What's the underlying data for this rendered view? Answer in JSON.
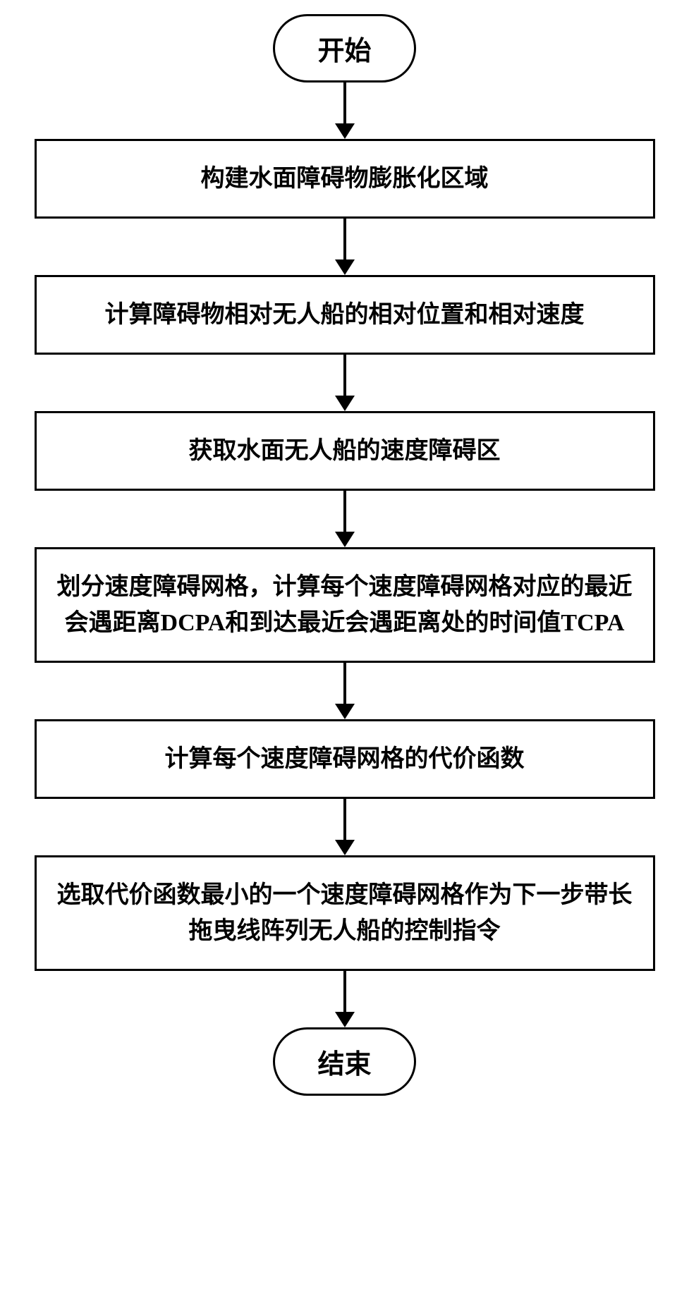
{
  "flowchart": {
    "type": "flowchart",
    "direction": "top-down",
    "background_color": "#ffffff",
    "border_color": "#000000",
    "border_width": 3,
    "text_color": "#000000",
    "font_family": "SimSun",
    "terminator_fontsize": 38,
    "process_fontsize": 34,
    "font_weight": "bold",
    "terminator_border_radius": 50,
    "arrow_color": "#000000",
    "arrow_line_width": 4,
    "arrow_head_width": 28,
    "arrow_head_height": 22,
    "nodes": [
      {
        "id": "start",
        "type": "terminator",
        "label": "开始"
      },
      {
        "id": "step1",
        "type": "process",
        "label": "构建水面障碍物膨胀化区域"
      },
      {
        "id": "step2",
        "type": "process",
        "label": "计算障碍物相对无人船的相对位置和相对速度"
      },
      {
        "id": "step3",
        "type": "process",
        "label": "获取水面无人船的速度障碍区"
      },
      {
        "id": "step4",
        "type": "process",
        "label": "划分速度障碍网格，计算每个速度障碍网格对应的最近会遇距离DCPA和到达最近会遇距离处的时间值TCPA"
      },
      {
        "id": "step5",
        "type": "process",
        "label": "计算每个速度障碍网格的代价函数"
      },
      {
        "id": "step6",
        "type": "process",
        "label": "选取代价函数最小的一个速度障碍网格作为下一步带长拖曳线阵列无人船的控制指令"
      },
      {
        "id": "end",
        "type": "terminator",
        "label": "结束"
      }
    ],
    "edges": [
      {
        "from": "start",
        "to": "step1"
      },
      {
        "from": "step1",
        "to": "step2"
      },
      {
        "from": "step2",
        "to": "step3"
      },
      {
        "from": "step3",
        "to": "step4"
      },
      {
        "from": "step4",
        "to": "step5"
      },
      {
        "from": "step5",
        "to": "step6"
      },
      {
        "from": "step6",
        "to": "end"
      }
    ]
  }
}
